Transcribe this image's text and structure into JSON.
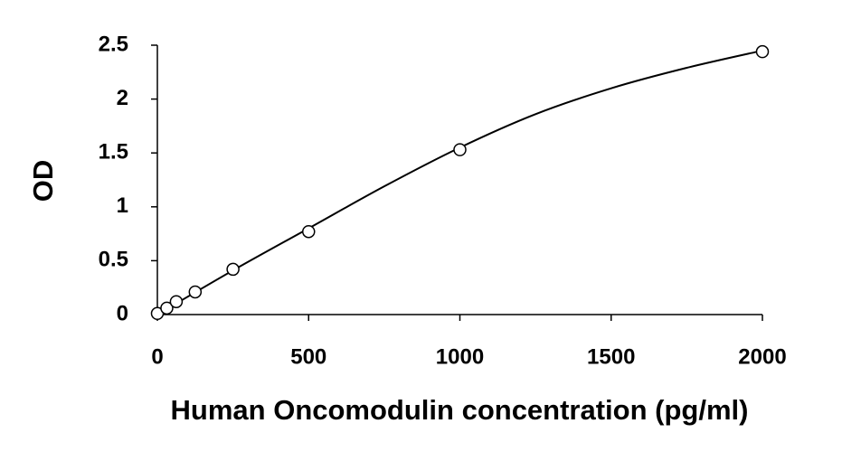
{
  "chart_data": {
    "type": "scatter",
    "x_label": "Human Oncomodulin concentration (pg/ml)",
    "y_label": "OD",
    "xlim": [
      0,
      2000
    ],
    "ylim": [
      0,
      2.5
    ],
    "xticks": [
      0,
      500,
      1000,
      1500,
      2000
    ],
    "yticks": [
      0,
      0.5,
      1,
      1.5,
      2,
      2.5
    ],
    "grid": false,
    "series": [
      {
        "style": "markers",
        "color": "#000000",
        "x": [
          0,
          31.25,
          62.5,
          125,
          250,
          500,
          1000,
          2000
        ],
        "values": [
          0.01,
          0.06,
          0.12,
          0.21,
          0.42,
          0.77,
          1.53,
          2.44
        ]
      },
      {
        "style": "line",
        "color": "#000000",
        "x": [
          0,
          250,
          500,
          750,
          1000,
          1250,
          1500,
          1750,
          2000
        ],
        "values": [
          0,
          0.41,
          0.8,
          1.19,
          1.55,
          1.86,
          2.1,
          2.29,
          2.45
        ]
      }
    ]
  }
}
